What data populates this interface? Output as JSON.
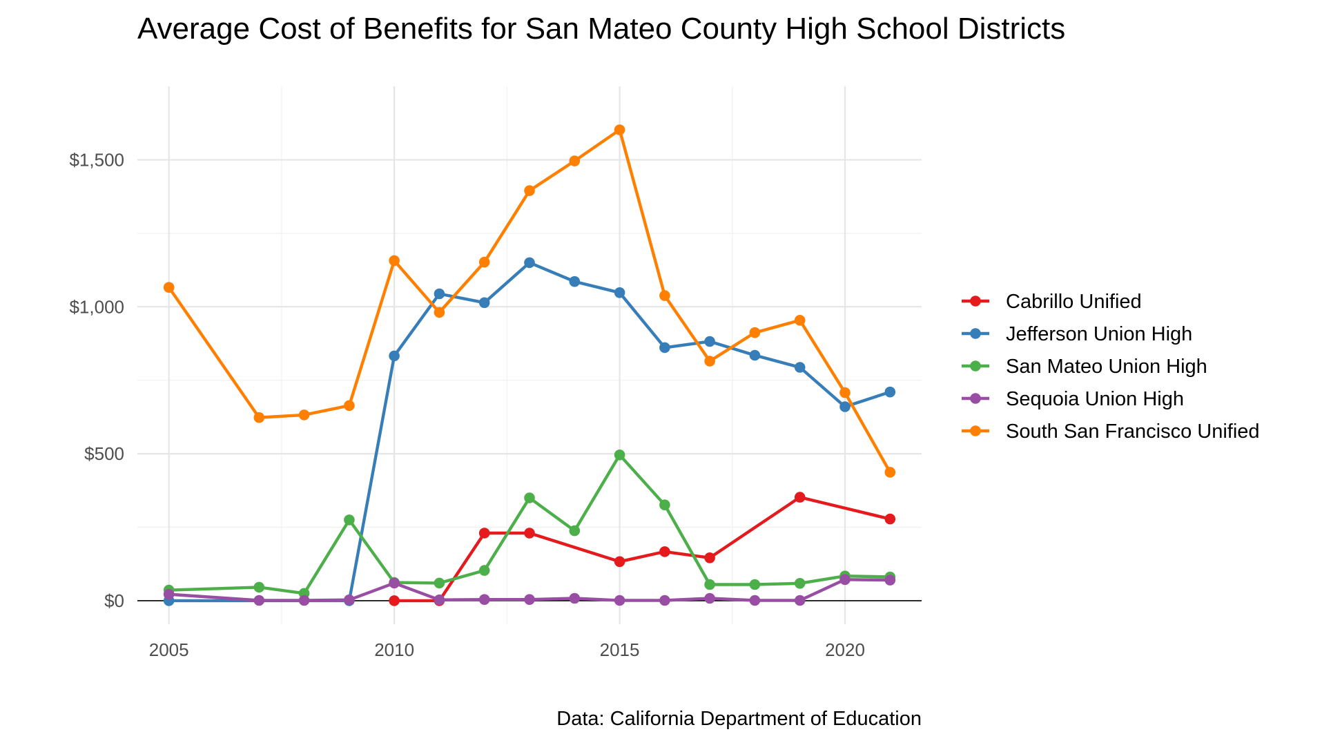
{
  "chart_data": {
    "type": "line",
    "title": "Average Cost of Benefits for San Mateo County High School Districts",
    "caption": "Data: California Department of Education",
    "xlabel": "",
    "ylabel": "",
    "xlim": [
      2004.3,
      2021.7
    ],
    "ylim": [
      -80,
      1750
    ],
    "x_ticks": [
      2005,
      2010,
      2015,
      2020
    ],
    "x_tick_labels": [
      "2005",
      "2010",
      "2015",
      "2020"
    ],
    "y_ticks": [
      0,
      500,
      1000,
      1500
    ],
    "y_tick_labels": [
      "$0",
      "$500",
      "$1,000",
      "$1,500"
    ],
    "grid": true,
    "legend_position": "right",
    "series": [
      {
        "name": "Cabrillo Unified",
        "color": "#E41A1C",
        "points": [
          [
            2010,
            0
          ],
          [
            2011,
            0
          ],
          [
            2012,
            230
          ],
          [
            2013,
            230
          ],
          [
            2015,
            133
          ],
          [
            2016,
            167
          ],
          [
            2017,
            146
          ],
          [
            2019,
            352
          ],
          [
            2021,
            278
          ]
        ]
      },
      {
        "name": "Jefferson Union High",
        "color": "#377EB8",
        "points": [
          [
            2005,
            0
          ],
          [
            2009,
            0
          ],
          [
            2010,
            833
          ],
          [
            2011,
            1044
          ],
          [
            2012,
            1014
          ],
          [
            2013,
            1150
          ],
          [
            2014,
            1086
          ],
          [
            2015,
            1048
          ],
          [
            2016,
            861
          ],
          [
            2017,
            882
          ],
          [
            2018,
            835
          ],
          [
            2019,
            794
          ],
          [
            2020,
            660
          ],
          [
            2021,
            710
          ]
        ]
      },
      {
        "name": "San Mateo Union High",
        "color": "#4DAF4A",
        "points": [
          [
            2005,
            36
          ],
          [
            2007,
            46
          ],
          [
            2008,
            25
          ],
          [
            2009,
            275
          ],
          [
            2010,
            62
          ],
          [
            2011,
            60
          ],
          [
            2012,
            103
          ],
          [
            2013,
            350
          ],
          [
            2014,
            238
          ],
          [
            2015,
            496
          ],
          [
            2016,
            326
          ],
          [
            2017,
            55
          ],
          [
            2018,
            55
          ],
          [
            2019,
            59
          ],
          [
            2020,
            84
          ],
          [
            2021,
            81
          ]
        ]
      },
      {
        "name": "Sequoia Union High",
        "color": "#984EA3",
        "points": [
          [
            2005,
            22
          ],
          [
            2007,
            1
          ],
          [
            2008,
            1
          ],
          [
            2009,
            3
          ],
          [
            2010,
            60
          ],
          [
            2011,
            3
          ],
          [
            2012,
            4
          ],
          [
            2013,
            4
          ],
          [
            2014,
            8
          ],
          [
            2015,
            1
          ],
          [
            2016,
            1
          ],
          [
            2017,
            8
          ],
          [
            2018,
            1
          ],
          [
            2019,
            1
          ],
          [
            2020,
            72
          ],
          [
            2021,
            70
          ]
        ]
      },
      {
        "name": "South San Francisco Unified",
        "color": "#FF7F00",
        "points": [
          [
            2005,
            1066
          ],
          [
            2007,
            623
          ],
          [
            2008,
            632
          ],
          [
            2009,
            664
          ],
          [
            2010,
            1157
          ],
          [
            2011,
            981
          ],
          [
            2012,
            1152
          ],
          [
            2013,
            1395
          ],
          [
            2014,
            1496
          ],
          [
            2015,
            1602
          ],
          [
            2016,
            1038
          ],
          [
            2017,
            815
          ],
          [
            2018,
            912
          ],
          [
            2019,
            954
          ],
          [
            2020,
            708
          ],
          [
            2021,
            437
          ]
        ]
      }
    ]
  }
}
